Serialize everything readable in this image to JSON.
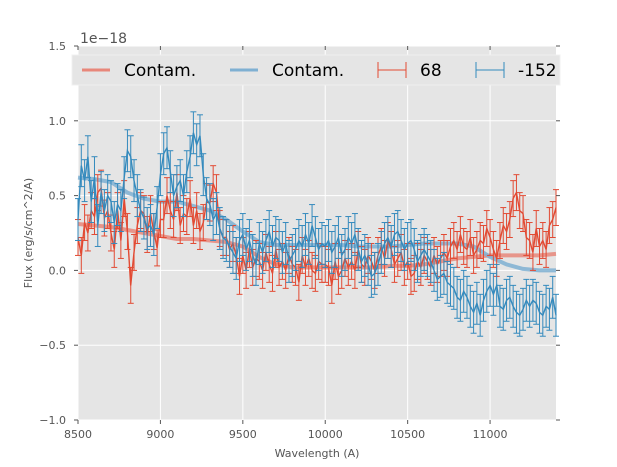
{
  "chart_data": {
    "type": "line",
    "title": "",
    "xlabel": "Wavelength (A)",
    "ylabel": "Flux (erg/s/cm^2/A)",
    "y_offset_label": "1e−18",
    "xlim": [
      8500,
      11400
    ],
    "ylim": [
      -1.0,
      1.5
    ],
    "xticks": [
      8500,
      9000,
      9500,
      10000,
      10500,
      11000
    ],
    "xtick_labels": [
      "8500",
      "9000",
      "9500",
      "10000",
      "10500",
      "11000"
    ],
    "yticks": [
      -1.0,
      -0.5,
      0.0,
      0.5,
      1.0,
      1.5
    ],
    "ytick_labels": [
      "−1.0",
      "−0.5",
      "0.0",
      "0.5",
      "1.0",
      "1.5"
    ],
    "grid": true,
    "legend_placement": "top",
    "legend": [
      {
        "label": "Contam.",
        "kind": "line",
        "color": "#e8877a"
      },
      {
        "label": "Contam.",
        "kind": "line",
        "color": "#7fb0d2"
      },
      {
        "label": "68",
        "kind": "errorbar",
        "color": "#e24a33"
      },
      {
        "label": "-152",
        "kind": "errorbar",
        "color": "#348abd"
      }
    ],
    "colors": {
      "background": "#e5e5e5",
      "grid": "#ffffff",
      "red": "#e24a33",
      "blue": "#348abd",
      "red_contam": "#e8877a",
      "blue_contam": "#7fb0d2"
    },
    "contam_series": [
      {
        "name": "Contam. (68)",
        "color": "#e8877a",
        "x": [
          8500,
          8600,
          8700,
          8800,
          8900,
          9000,
          9100,
          9200,
          9300,
          9400,
          9500,
          9600,
          9700,
          9800,
          9900,
          10000,
          10100,
          10200,
          10300,
          10400,
          10500,
          10600,
          10700,
          10800,
          10900,
          11000,
          11100,
          11200,
          11300,
          11400
        ],
        "y": [
          0.31,
          0.3,
          0.29,
          0.27,
          0.25,
          0.23,
          0.21,
          0.21,
          0.2,
          0.19,
          0.16,
          0.09,
          0.04,
          0.02,
          0.02,
          0.02,
          0.02,
          0.02,
          0.02,
          0.03,
          0.03,
          0.04,
          0.06,
          0.08,
          0.09,
          0.1,
          0.1,
          0.1,
          0.1,
          0.11
        ]
      },
      {
        "name": "Contam. (-152)",
        "color": "#7fb0d2",
        "x": [
          8500,
          8600,
          8700,
          8800,
          8900,
          9000,
          9100,
          9200,
          9300,
          9400,
          9500,
          9600,
          9700,
          9800,
          9900,
          10000,
          10100,
          10200,
          10300,
          10400,
          10500,
          10600,
          10700,
          10800,
          10900,
          11000,
          11100,
          11200,
          11300,
          11400
        ],
        "y": [
          0.62,
          0.61,
          0.59,
          0.52,
          0.48,
          0.46,
          0.46,
          0.43,
          0.4,
          0.34,
          0.26,
          0.19,
          0.17,
          0.17,
          0.17,
          0.17,
          0.17,
          0.16,
          0.16,
          0.16,
          0.17,
          0.18,
          0.18,
          0.18,
          0.16,
          0.09,
          0.04,
          0.01,
          0.0,
          0.0
        ]
      }
    ],
    "errorbar_series": [
      {
        "name": "68",
        "color": "#e24a33",
        "x": [
          8500,
          8520,
          8540,
          8560,
          8580,
          8600,
          8620,
          8640,
          8660,
          8680,
          8700,
          8720,
          8740,
          8760,
          8780,
          8800,
          8820,
          8840,
          8860,
          8880,
          8900,
          8920,
          8940,
          8960,
          8980,
          9000,
          9020,
          9040,
          9060,
          9080,
          9100,
          9120,
          9140,
          9160,
          9180,
          9200,
          9220,
          9240,
          9260,
          9280,
          9300,
          9320,
          9340,
          9360,
          9380,
          9400,
          9420,
          9440,
          9460,
          9480,
          9500,
          9520,
          9540,
          9560,
          9580,
          9600,
          9620,
          9640,
          9660,
          9680,
          9700,
          9720,
          9740,
          9760,
          9780,
          9800,
          9820,
          9840,
          9860,
          9880,
          9900,
          9920,
          9940,
          9960,
          9980,
          10000,
          10020,
          10040,
          10060,
          10080,
          10100,
          10120,
          10140,
          10160,
          10180,
          10200,
          10220,
          10240,
          10260,
          10280,
          10300,
          10320,
          10340,
          10360,
          10380,
          10400,
          10420,
          10440,
          10460,
          10480,
          10500,
          10520,
          10540,
          10560,
          10580,
          10600,
          10620,
          10640,
          10660,
          10680,
          10700,
          10720,
          10740,
          10760,
          10780,
          10800,
          10820,
          10840,
          10860,
          10880,
          10900,
          10920,
          10940,
          10960,
          10980,
          11000,
          11020,
          11040,
          11060,
          11080,
          11100,
          11120,
          11140,
          11160,
          11180,
          11200,
          11220,
          11240,
          11260,
          11280,
          11300,
          11320,
          11340,
          11360,
          11380,
          11400
        ],
        "y": [
          0.22,
          0.1,
          0.32,
          0.25,
          0.4,
          0.36,
          0.52,
          0.55,
          0.35,
          0.4,
          0.25,
          0.14,
          0.4,
          0.2,
          0.48,
          0.26,
          -0.1,
          0.12,
          0.3,
          0.4,
          0.38,
          0.24,
          0.38,
          0.26,
          0.15,
          0.34,
          0.34,
          0.5,
          0.4,
          0.34,
          0.52,
          0.3,
          0.38,
          0.36,
          0.48,
          0.3,
          0.4,
          0.26,
          0.32,
          0.46,
          0.45,
          0.58,
          0.52,
          0.28,
          0.22,
          0.22,
          0.14,
          0.18,
          0.1,
          -0.04,
          0.1,
          0.0,
          0.14,
          0.02,
          0.08,
          0.06,
          0.0,
          0.12,
          0.04,
          -0.02,
          0.14,
          0.02,
          0.06,
          0.0,
          0.1,
          0.04,
          0.02,
          -0.08,
          0.1,
          0.02,
          0.08,
          0.0,
          -0.02,
          0.06,
          0.04,
          0.04,
          0.02,
          -0.1,
          0.06,
          -0.04,
          0.0,
          0.08,
          0.02,
          0.06,
          0.0,
          0.14,
          0.04,
          0.02,
          0.1,
          0.06,
          0.0,
          0.1,
          0.16,
          0.08,
          0.2,
          0.14,
          0.04,
          0.08,
          0.12,
          0.02,
          0.06,
          -0.04,
          -0.02,
          0.06,
          0.02,
          0.1,
          0.06,
          0.02,
          0.1,
          0.04,
          0.08,
          0.12,
          0.08,
          0.16,
          0.2,
          0.14,
          0.24,
          0.16,
          0.14,
          0.22,
          0.1,
          0.14,
          0.2,
          0.18,
          0.28,
          0.22,
          0.14,
          0.08,
          0.2,
          0.3,
          0.26,
          0.34,
          0.48,
          0.52,
          0.4,
          0.38,
          0.22,
          0.2,
          0.12,
          0.28,
          0.16,
          0.2,
          0.14,
          0.3,
          0.34,
          0.42
        ],
        "yerr": 0.12
      },
      {
        "name": "-152",
        "color": "#348abd",
        "x": [
          8500,
          8520,
          8540,
          8560,
          8580,
          8600,
          8620,
          8640,
          8660,
          8680,
          8700,
          8720,
          8740,
          8760,
          8780,
          8800,
          8820,
          8840,
          8860,
          8880,
          8900,
          8920,
          8940,
          8960,
          8980,
          9000,
          9020,
          9040,
          9060,
          9080,
          9100,
          9120,
          9140,
          9160,
          9180,
          9200,
          9220,
          9240,
          9260,
          9280,
          9300,
          9320,
          9340,
          9360,
          9380,
          9400,
          9420,
          9440,
          9460,
          9480,
          9500,
          9520,
          9540,
          9560,
          9580,
          9600,
          9620,
          9640,
          9660,
          9680,
          9700,
          9720,
          9740,
          9760,
          9780,
          9800,
          9820,
          9840,
          9860,
          9880,
          9900,
          9920,
          9940,
          9960,
          9980,
          10000,
          10020,
          10040,
          10060,
          10080,
          10100,
          10120,
          10140,
          10160,
          10180,
          10200,
          10220,
          10240,
          10260,
          10280,
          10300,
          10320,
          10340,
          10360,
          10380,
          10400,
          10420,
          10440,
          10460,
          10480,
          10500,
          10520,
          10540,
          10560,
          10580,
          10600,
          10620,
          10640,
          10660,
          10680,
          10700,
          10720,
          10740,
          10760,
          10780,
          10800,
          10820,
          10840,
          10860,
          10880,
          10900,
          10920,
          10940,
          10960,
          10980,
          11000,
          11020,
          11040,
          11060,
          11080,
          11100,
          11120,
          11140,
          11160,
          11180,
          11200,
          11220,
          11240,
          11260,
          11280,
          11300,
          11320,
          11340,
          11360,
          11380,
          11400
        ],
        "y": [
          0.34,
          0.7,
          0.6,
          0.76,
          0.46,
          0.62,
          0.3,
          0.52,
          0.4,
          0.5,
          0.46,
          0.32,
          0.44,
          0.4,
          0.62,
          0.8,
          0.76,
          0.6,
          0.5,
          0.4,
          0.35,
          0.28,
          0.3,
          0.24,
          0.42,
          0.64,
          0.78,
          0.82,
          0.66,
          0.5,
          0.56,
          0.6,
          0.5,
          0.66,
          0.76,
          0.92,
          0.84,
          0.9,
          0.64,
          0.48,
          0.44,
          0.34,
          0.38,
          0.28,
          0.22,
          0.2,
          0.16,
          0.12,
          0.08,
          0.2,
          0.24,
          0.14,
          0.2,
          0.1,
          0.04,
          0.18,
          0.12,
          0.2,
          0.26,
          0.16,
          0.22,
          0.2,
          0.12,
          0.18,
          0.06,
          0.1,
          0.14,
          0.2,
          0.16,
          0.24,
          0.18,
          0.3,
          0.22,
          0.14,
          0.18,
          0.16,
          0.2,
          0.12,
          0.16,
          0.22,
          0.1,
          0.14,
          0.22,
          0.18,
          0.24,
          0.14,
          0.06,
          0.1,
          0.04,
          -0.04,
          -0.02,
          0.04,
          0.12,
          0.18,
          0.22,
          0.16,
          0.24,
          0.26,
          0.2,
          0.14,
          0.18,
          0.2,
          0.14,
          0.06,
          0.1,
          0.14,
          0.1,
          0.06,
          0.0,
          -0.06,
          -0.04,
          -0.02,
          -0.08,
          -0.1,
          -0.12,
          -0.18,
          -0.2,
          -0.14,
          -0.18,
          -0.24,
          -0.28,
          -0.22,
          -0.3,
          -0.2,
          -0.14,
          -0.1,
          -0.16,
          -0.1,
          -0.24,
          -0.26,
          -0.2,
          -0.18,
          -0.24,
          -0.28,
          -0.3,
          -0.26,
          -0.2,
          -0.24,
          -0.2,
          -0.22,
          -0.28,
          -0.3,
          -0.24,
          -0.26,
          -0.18,
          -0.3
        ],
        "yerr": 0.14
      }
    ]
  }
}
